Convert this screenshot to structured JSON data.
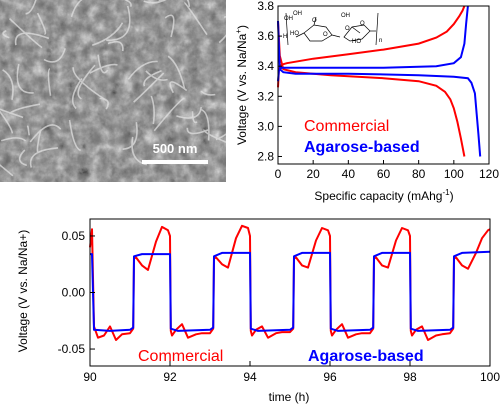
{
  "sem_image": {
    "scale_bar_label": "500 nm"
  },
  "chart_data": [
    {
      "type": "line",
      "xlabel": "Specific capacity (mAhg",
      "xlabel_superscript": "-1",
      "xlabel_close": ")",
      "ylabel": "Voltage (V vs. Na/Na",
      "ylabel_superscript": "+",
      "ylabel_close": ")",
      "xlim": [
        0,
        120
      ],
      "ylim": [
        2.75,
        3.8
      ],
      "xticks": [
        "0",
        "20",
        "40",
        "60",
        "80",
        "100",
        "120"
      ],
      "yticks": [
        "2.8",
        "3.0",
        "3.2",
        "3.4",
        "3.6",
        "3.8"
      ],
      "legend_placement": "bottom-left",
      "series": [
        {
          "name": "Commercial",
          "color": "#ff0000",
          "charge": {
            "x": [
              0,
              0.5,
              2,
              5,
              10,
              20,
              40,
              60,
              80,
              90,
              96,
              100,
              103,
              105,
              106
            ],
            "y": [
              3.26,
              3.38,
              3.41,
              3.42,
              3.43,
              3.45,
              3.48,
              3.51,
              3.55,
              3.59,
              3.63,
              3.68,
              3.73,
              3.77,
              3.8
            ]
          },
          "discharge": {
            "x": [
              0,
              1,
              3,
              10,
              30,
              60,
              80,
              90,
              95,
              98,
              100,
              102,
              104,
              106
            ],
            "y": [
              3.7,
              3.47,
              3.38,
              3.36,
              3.34,
              3.32,
              3.3,
              3.27,
              3.23,
              3.18,
              3.12,
              3.03,
              2.92,
              2.8
            ]
          }
        },
        {
          "name": "Agarose-based",
          "color": "#0000ff",
          "charge": {
            "x": [
              0,
              0.5,
              2,
              4,
              10,
              30,
              60,
              90,
              100,
              104,
              106,
              107,
              108
            ],
            "y": [
              3.3,
              3.37,
              3.39,
              3.39,
              3.39,
              3.39,
              3.39,
              3.4,
              3.42,
              3.46,
              3.55,
              3.68,
              3.8
            ]
          },
          "discharge": {
            "x": [
              0,
              1,
              3,
              10,
              40,
              80,
              100,
              108,
              110,
              112,
              113,
              114,
              115
            ],
            "y": [
              3.7,
              3.38,
              3.36,
              3.35,
              3.35,
              3.34,
              3.33,
              3.32,
              3.29,
              3.22,
              3.08,
              2.95,
              2.8
            ]
          }
        }
      ],
      "inset_labels": [
        "OH",
        "OH",
        "HO",
        "H",
        "O",
        "O",
        "O",
        "O",
        "HO",
        "OH",
        "n"
      ]
    },
    {
      "type": "line",
      "xlabel": "time (h)",
      "ylabel": "Voltage (V vs. Na/Na+)",
      "xlim": [
        90,
        100
      ],
      "ylim": [
        -0.065,
        0.065
      ],
      "xticks": [
        "90",
        "92",
        "94",
        "96",
        "98",
        "100"
      ],
      "yticks": [
        "-0.05",
        "0.00",
        "0.05"
      ],
      "legend_placement": "bottom",
      "series": [
        {
          "name": "Commercial",
          "color": "#ff0000",
          "x": [
            90.0,
            90.05,
            90.1,
            90.2,
            90.35,
            90.5,
            90.65,
            90.8,
            91.0,
            91.08,
            91.1,
            91.15,
            91.3,
            91.45,
            91.65,
            91.8,
            91.95,
            92.0,
            92.02,
            92.05,
            92.15,
            92.3,
            92.45,
            92.65,
            92.8,
            93.0,
            93.08,
            93.1,
            93.15,
            93.3,
            93.45,
            93.65,
            93.8,
            93.95,
            94.0,
            94.02,
            94.05,
            94.15,
            94.3,
            94.45,
            94.65,
            94.8,
            95.0,
            95.08,
            95.1,
            95.15,
            95.3,
            95.45,
            95.65,
            95.8,
            95.95,
            96.0,
            96.02,
            96.05,
            96.15,
            96.3,
            96.45,
            96.65,
            96.8,
            97.0,
            97.08,
            97.1,
            97.15,
            97.3,
            97.45,
            97.65,
            97.8,
            97.95,
            98.0,
            98.02,
            98.05,
            98.15,
            98.3,
            98.45,
            98.65,
            98.8,
            99.0,
            99.08,
            99.1,
            99.15,
            99.3,
            99.45,
            99.65,
            99.8,
            99.95,
            100.0
          ],
          "y": [
            0.04,
            0.056,
            -0.03,
            -0.04,
            -0.038,
            -0.03,
            -0.042,
            -0.037,
            -0.036,
            -0.032,
            0.03,
            0.031,
            0.024,
            0.02,
            0.045,
            0.058,
            0.055,
            0.05,
            -0.034,
            -0.038,
            -0.033,
            -0.028,
            -0.04,
            -0.037,
            -0.036,
            -0.036,
            -0.032,
            0.03,
            0.031,
            0.025,
            0.022,
            0.048,
            0.059,
            0.057,
            0.05,
            -0.034,
            -0.038,
            -0.033,
            -0.03,
            -0.04,
            -0.036,
            -0.035,
            -0.035,
            -0.032,
            0.03,
            0.031,
            0.024,
            0.022,
            0.046,
            0.057,
            0.055,
            0.05,
            -0.034,
            -0.038,
            -0.033,
            -0.028,
            -0.04,
            -0.037,
            -0.036,
            -0.036,
            -0.032,
            0.03,
            0.031,
            0.024,
            0.022,
            0.046,
            0.057,
            0.055,
            0.05,
            -0.034,
            -0.038,
            -0.033,
            -0.03,
            -0.042,
            -0.038,
            -0.037,
            -0.036,
            -0.032,
            0.03,
            0.031,
            0.024,
            0.021,
            0.035,
            0.048,
            0.055,
            0.056
          ]
        },
        {
          "name": "Agarose-based",
          "color": "#0000ff",
          "x": [
            90.0,
            90.05,
            90.1,
            90.5,
            91.0,
            91.08,
            91.1,
            91.3,
            92.0,
            92.02,
            92.2,
            93.0,
            93.08,
            93.1,
            93.3,
            94.0,
            94.02,
            94.2,
            95.0,
            95.08,
            95.1,
            95.3,
            96.0,
            96.02,
            96.2,
            97.0,
            97.08,
            97.1,
            97.3,
            98.0,
            98.02,
            98.2,
            99.0,
            99.08,
            99.1,
            99.3,
            100.0
          ],
          "y": [
            0.034,
            0.034,
            -0.033,
            -0.034,
            -0.033,
            -0.031,
            0.032,
            0.034,
            0.034,
            -0.032,
            -0.034,
            -0.033,
            -0.031,
            0.032,
            0.035,
            0.035,
            -0.032,
            -0.034,
            -0.033,
            -0.031,
            0.032,
            0.035,
            0.035,
            -0.032,
            -0.034,
            -0.033,
            -0.031,
            0.032,
            0.035,
            0.035,
            -0.032,
            -0.034,
            -0.033,
            -0.031,
            0.032,
            0.035,
            0.036
          ]
        }
      ]
    }
  ]
}
